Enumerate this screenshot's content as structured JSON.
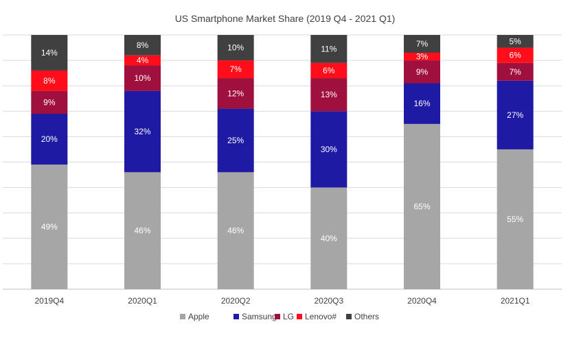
{
  "chart_data": {
    "type": "bar",
    "stacked": true,
    "title": "US Smartphone Market Share (2019 Q4 - 2021 Q1)",
    "categories": [
      "2019Q4",
      "2020Q1",
      "2020Q2",
      "2020Q3",
      "2020Q4",
      "2021Q1"
    ],
    "ylim": [
      0,
      100
    ],
    "grid": true,
    "legend_position": "bottom",
    "series": [
      {
        "name": "Apple",
        "color": "#a6a6a6",
        "label_color": "#ffffff",
        "values": [
          49,
          46,
          46,
          40,
          65,
          55
        ]
      },
      {
        "name": "Samsung",
        "color": "#1f1aa3",
        "label_color": "#ffffff",
        "values": [
          20,
          32,
          25,
          30,
          16,
          27
        ]
      },
      {
        "name": "LG",
        "color": "#a0103e",
        "label_color": "#ffffff",
        "values": [
          9,
          10,
          12,
          13,
          9,
          7
        ]
      },
      {
        "name": "Lenovo#",
        "color": "#ff0d1a",
        "label_color": "#ffffff",
        "values": [
          8,
          4,
          7,
          6,
          3,
          6
        ]
      },
      {
        "name": "Others",
        "color": "#404040",
        "label_color": "#ffffff",
        "values": [
          14,
          8,
          10,
          11,
          7,
          5
        ]
      }
    ],
    "data_labels": [
      [
        "49%",
        "46%",
        "46%",
        "40%",
        "65%",
        "55%"
      ],
      [
        "20%",
        "32%",
        "25%",
        "30%",
        "16%",
        "27%"
      ],
      [
        "9%",
        "10%",
        "12%",
        "13%",
        "9%",
        "7%"
      ],
      [
        "8%",
        "4%",
        "7%",
        "6%",
        "3%",
        "6%"
      ],
      [
        "14%",
        "8%",
        "10%",
        "11%",
        "7%",
        "5%"
      ]
    ]
  }
}
